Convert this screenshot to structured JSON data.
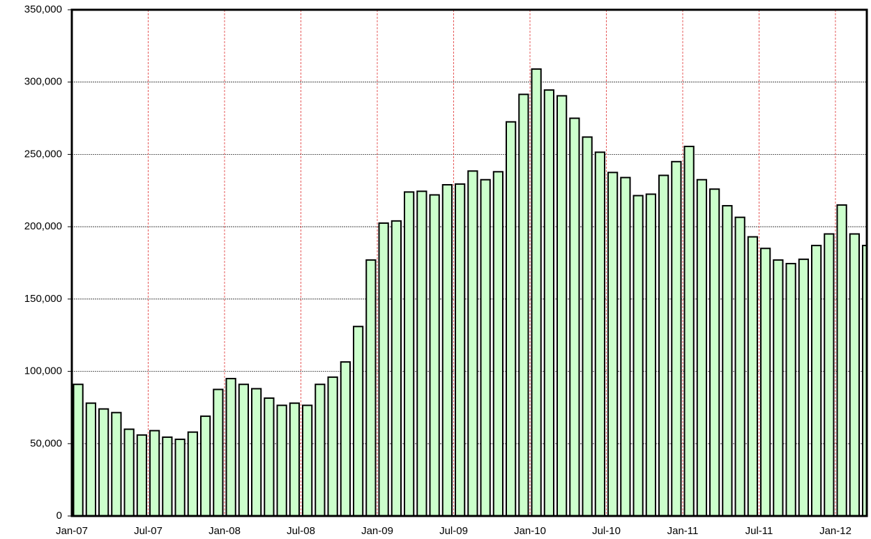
{
  "chart_data": {
    "type": "bar",
    "categories": [
      "Jan-07",
      null,
      null,
      null,
      null,
      null,
      "Jul-07",
      null,
      null,
      null,
      null,
      null,
      "Jan-08",
      null,
      null,
      null,
      null,
      null,
      "Jul-08",
      null,
      null,
      null,
      null,
      null,
      "Jan-09",
      null,
      null,
      null,
      null,
      null,
      "Jul-09",
      null,
      null,
      null,
      null,
      null,
      "Jan-10",
      null,
      null,
      null,
      null,
      null,
      "Jul-10",
      null,
      null,
      null,
      null,
      null,
      "Jan-11",
      null,
      null,
      null,
      null,
      null,
      "Jul-11",
      null,
      null,
      null,
      null,
      null,
      "Jan-12",
      null,
      null
    ],
    "values": [
      91000,
      78000,
      74000,
      71500,
      60000,
      56000,
      59000,
      54500,
      53000,
      58000,
      69000,
      87500,
      95000,
      91000,
      88000,
      81500,
      76500,
      78000,
      76500,
      91000,
      96000,
      106500,
      131000,
      177000,
      202500,
      204000,
      224000,
      224500,
      222000,
      229000,
      229500,
      238500,
      232500,
      238000,
      272500,
      291500,
      309000,
      294500,
      290500,
      275000,
      262000,
      251500,
      237500,
      234000,
      221500,
      222500,
      235500,
      245000,
      255500,
      232500,
      226000,
      214500,
      206500,
      193000,
      185000,
      177000,
      174500,
      177500,
      187000,
      195000,
      215000,
      195000,
      187000
    ],
    "color": "#ccffcc",
    "ylim": [
      0,
      350000
    ],
    "yticks": [
      0,
      {
        "value": 50000,
        "label": "50,000"
      },
      {
        "value": 100000,
        "label": "100,000"
      },
      {
        "value": 150000,
        "label": "150,000"
      },
      {
        "value": 200000,
        "label": "200,000"
      },
      {
        "value": 250000,
        "label": "250,000"
      },
      {
        "value": 300000,
        "label": "300,000"
      },
      {
        "value": 350000,
        "label": "350,000"
      }
    ],
    "grid": true
  }
}
